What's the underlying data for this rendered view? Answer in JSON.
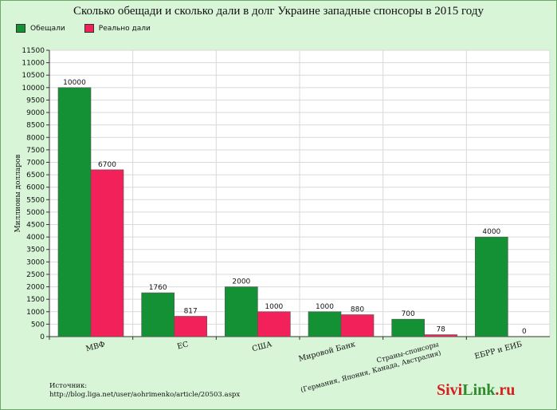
{
  "title": "Сколько обещади и сколько дали в долг Украине западные спонсоры в 2015 году",
  "legend": [
    {
      "label": "Обещали",
      "color": "#139134"
    },
    {
      "label": "Реально дали",
      "color": "#f2215a"
    }
  ],
  "source": {
    "line1": "Источник:",
    "line2": "http://blog.liga.net/user/aohrimenko/article/20503.aspx"
  },
  "brand": {
    "part1": "Sivi",
    "part2": "Link",
    "part3": ".ru"
  },
  "chart_data": {
    "type": "bar",
    "title": "Сколько обещади и сколько дали в долг Украине западные спонсоры в 2015 году",
    "ylabel": "Миллионы долларов",
    "xlabel": "",
    "ylim": [
      0,
      11500
    ],
    "ytick_step": 500,
    "grid": true,
    "legend_position": "top-left",
    "categories": [
      [
        "МВФ"
      ],
      [
        "ЕС"
      ],
      [
        "США"
      ],
      [
        "Мировой Банк"
      ],
      [
        "Страны-спонсоры",
        "(Германия, Япония, Канада, Австралия)"
      ],
      [
        "ЕБРР и ЕИБ"
      ]
    ],
    "series": [
      {
        "name": "Обещали",
        "color": "#139134",
        "values": [
          10000,
          1760,
          2000,
          1000,
          700,
          4000
        ]
      },
      {
        "name": "Реально дали",
        "color": "#f2215a",
        "values": [
          6700,
          817,
          1000,
          880,
          78,
          0
        ]
      }
    ]
  }
}
